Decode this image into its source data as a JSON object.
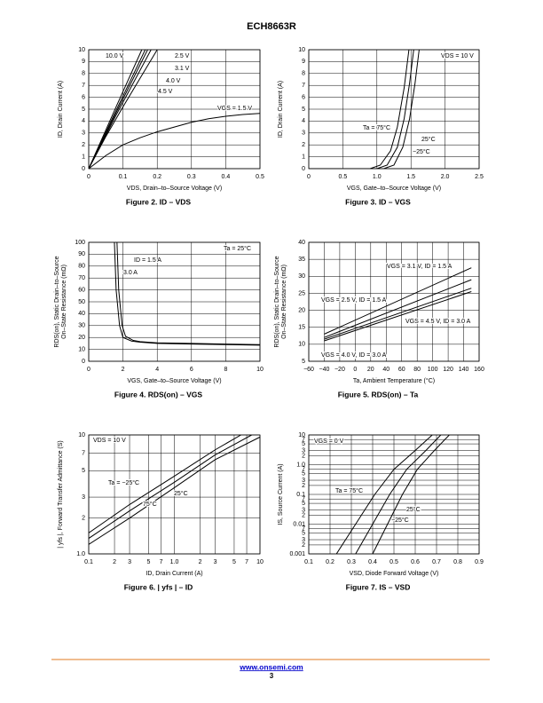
{
  "header": {
    "title": "ECH8663R"
  },
  "footer": {
    "link": "www.onsemi.com",
    "page": "3"
  },
  "chart_data": [
    {
      "type": "line",
      "title": "Figure 2. ID – VDS",
      "xlabel": "VDS, Drain–to–Source Voltage (V)",
      "ylabel": [
        "ID, Drain Current (A)"
      ],
      "xlim": [
        0,
        0.5
      ],
      "xticks": [
        0,
        0.1,
        0.2,
        0.3,
        0.4,
        0.5
      ],
      "ylim": [
        0,
        10
      ],
      "yticks": [
        0,
        1,
        2,
        3,
        4,
        5,
        6,
        7,
        8,
        9,
        10
      ],
      "grid": true,
      "color": "#000000",
      "annotations": [],
      "series": [
        {
          "name": "10.0 V",
          "x": [
            0,
            0.08,
            0.155
          ],
          "values": [
            0,
            5.2,
            10
          ]
        },
        {
          "name": "4.5 V",
          "x": [
            0,
            0.08,
            0.165
          ],
          "values": [
            0,
            4.9,
            10
          ]
        },
        {
          "name": "4.0 V",
          "x": [
            0,
            0.08,
            0.172
          ],
          "values": [
            0,
            4.7,
            10
          ]
        },
        {
          "name": "3.1 V",
          "x": [
            0,
            0.08,
            0.182
          ],
          "values": [
            0,
            4.5,
            10
          ]
        },
        {
          "name": "2.5 V",
          "x": [
            0,
            0.05,
            0.1,
            0.15,
            0.2
          ],
          "values": [
            0,
            2.7,
            5.2,
            7.6,
            10
          ]
        },
        {
          "name": "VGS = 1.5 V",
          "x": [
            0,
            0.05,
            0.1,
            0.15,
            0.2,
            0.25,
            0.3,
            0.35,
            0.4,
            0.45,
            0.5
          ],
          "values": [
            0,
            1.1,
            2.0,
            2.6,
            3.1,
            3.5,
            3.9,
            4.2,
            4.4,
            4.55,
            4.65
          ]
        }
      ]
    },
    {
      "type": "line",
      "title": "Figure 3. ID – VGS",
      "xlabel": "VGS, Gate–to–Source Voltage (V)",
      "ylabel": [
        "ID, Drain Current (A)"
      ],
      "xlim": [
        0,
        2.5
      ],
      "xticks": [
        0,
        0.5,
        {
          "value": 1,
          "label": "1.0"
        },
        1.5,
        {
          "value": 2,
          "label": "2.0"
        },
        2.5
      ],
      "ylim": [
        0,
        10
      ],
      "yticks": [
        0,
        1,
        2,
        3,
        4,
        5,
        6,
        7,
        8,
        9,
        10
      ],
      "grid": true,
      "color": "#000000",
      "annotations": [
        "VDS = 10 V"
      ],
      "series": [
        {
          "name": "Ta = 75°C",
          "x": [
            0,
            0.9,
            1.05,
            1.2,
            1.3,
            1.4,
            1.47
          ],
          "values": [
            0,
            0,
            0.3,
            1.5,
            3.5,
            6.8,
            10
          ]
        },
        {
          "name": "25°C",
          "x": [
            0,
            1.0,
            1.15,
            1.3,
            1.4,
            1.48,
            1.54
          ],
          "values": [
            0,
            0,
            0.3,
            1.8,
            4.2,
            7.2,
            10
          ]
        },
        {
          "name": "−25°C",
          "x": [
            0,
            1.1,
            1.25,
            1.38,
            1.48,
            1.56,
            1.62
          ],
          "values": [
            0,
            0,
            0.3,
            1.8,
            4.2,
            7.2,
            10
          ]
        }
      ]
    },
    {
      "type": "line",
      "title": "Figure 4. RDS(on) – VGS",
      "xlabel": "VGS, Gate–to–Source Voltage (V)",
      "ylabel": [
        "RDS(on), Static Drain–to–Source",
        "On–State Resistance (mΩ)"
      ],
      "xlim": [
        0,
        10
      ],
      "xticks": [
        0,
        2,
        4,
        6,
        8,
        10
      ],
      "ylim": [
        0,
        100
      ],
      "yticks": [
        0,
        10,
        20,
        30,
        40,
        50,
        60,
        70,
        80,
        90,
        100
      ],
      "grid": true,
      "color": "#000000",
      "annotations": [
        "Ta = 25°C"
      ],
      "series": [
        {
          "name": "ID = 1.5 A",
          "x": [
            1.5,
            1.6,
            1.8,
            2,
            2.5,
            3,
            4,
            6,
            8,
            10
          ],
          "values": [
            100,
            60,
            30,
            20,
            17,
            16,
            15,
            14.5,
            14,
            13.5
          ]
        },
        {
          "name": "3.0 A",
          "x": [
            1.65,
            1.75,
            1.95,
            2.15,
            2.6,
            3,
            4,
            6,
            8,
            10
          ],
          "values": [
            100,
            60,
            30,
            21,
            17.5,
            16.5,
            15.5,
            15,
            14.5,
            14
          ]
        }
      ]
    },
    {
      "type": "line",
      "title": "Figure 5. RDS(on) – Ta",
      "xlabel": "Ta, Ambient Temperature (°C)",
      "ylabel": [
        "RDS(on), Static Drain–to–Source",
        "On–State Resistance (mΩ)"
      ],
      "xlim": [
        -60,
        160
      ],
      "xticks": [
        {
          "value": -60,
          "label": "−60"
        },
        {
          "value": -40,
          "label": "−40"
        },
        {
          "value": -20,
          "label": "−20"
        },
        0,
        20,
        40,
        60,
        80,
        100,
        120,
        140,
        160
      ],
      "ylim": [
        5,
        40
      ],
      "yticks": [
        5,
        10,
        15,
        20,
        25,
        30,
        35,
        40
      ],
      "grid": true,
      "color": "#000000",
      "annotations": [],
      "series": [
        {
          "name": "VGS = 3.1 V, ID = 1.5 A",
          "x": [
            -40,
            150
          ],
          "values": [
            13,
            32.5
          ]
        },
        {
          "name": "VGS = 2.5 V, ID = 1.5 A",
          "x": [
            -40,
            150
          ],
          "values": [
            12,
            29
          ]
        },
        {
          "name": "VGS = 4.5 V, ID = 3.0 A",
          "x": [
            -40,
            150
          ],
          "values": [
            11.5,
            26.5
          ]
        },
        {
          "name": "VGS = 4.0 V, ID = 3.0 A",
          "x": [
            -40,
            150
          ],
          "values": [
            11,
            25.5
          ]
        }
      ]
    },
    {
      "type": "line",
      "title": "Figure 6. | yfs | – ID",
      "xlabel": "ID, Drain Current (A)",
      "ylabel": [
        "| yfs |, Forward Transfer Admittance (S)"
      ],
      "xscale": "log",
      "yscale": "log",
      "xlim": [
        0.1,
        10
      ],
      "xticks": [
        0.1,
        {
          "value": 0.2,
          "label": "2"
        },
        {
          "value": 0.3,
          "label": "3"
        },
        {
          "value": 0.5,
          "label": "5"
        },
        {
          "value": 0.7,
          "label": "7"
        },
        {
          "value": 1,
          "label": "1.0"
        },
        2,
        3,
        5,
        7,
        10
      ],
      "ylim": [
        1,
        10
      ],
      "yticks": [
        {
          "value": 1,
          "label": "1.0"
        },
        2,
        3,
        5,
        7,
        10
      ],
      "grid": true,
      "color": "#000000",
      "annotations": [
        "VDS = 10 V"
      ],
      "series": [
        {
          "name": "Ta = −25°C",
          "x": [
            0.1,
            0.3,
            1,
            3,
            6
          ],
          "values": [
            1.5,
            2.6,
            4.5,
            7.5,
            10
          ]
        },
        {
          "name": "25°C",
          "x": [
            0.1,
            0.3,
            1,
            3,
            8
          ],
          "values": [
            1.35,
            2.3,
            4,
            6.8,
            10
          ]
        },
        {
          "name": "75°C",
          "x": [
            0.1,
            0.3,
            1,
            3,
            10
          ],
          "values": [
            1.2,
            2.0,
            3.6,
            6.2,
            9.6
          ]
        }
      ]
    },
    {
      "type": "line",
      "title": "Figure 7. IS – VSD",
      "xlabel": "VSD, Diode Forward Voltage (V)",
      "ylabel": [
        "IS, Source Current (A)"
      ],
      "yscale": "log",
      "xlim": [
        0.1,
        0.9
      ],
      "xticks": [
        0.1,
        0.2,
        0.3,
        0.4,
        0.5,
        0.6,
        0.7,
        0.8,
        0.9
      ],
      "ylim": [
        0.001,
        10
      ],
      "yticks": [
        0.001,
        {
          "value": 0.002,
          "label": "2"
        },
        {
          "value": 0.003,
          "label": "3"
        },
        {
          "value": 0.005,
          "label": "5"
        },
        {
          "value": 0.007,
          "label": "7"
        },
        0.01,
        {
          "value": 0.02,
          "label": "2"
        },
        {
          "value": 0.03,
          "label": "3"
        },
        {
          "value": 0.05,
          "label": "5"
        },
        {
          "value": 0.07,
          "label": "7"
        },
        0.1,
        {
          "value": 0.2,
          "label": "2"
        },
        {
          "value": 0.3,
          "label": "3"
        },
        {
          "value": 0.5,
          "label": "5"
        },
        {
          "value": 0.7,
          "label": "7"
        },
        {
          "value": 1,
          "label": "1.0"
        },
        2,
        3,
        5,
        7,
        10
      ],
      "grid": true,
      "color": "#000000",
      "annotations": [
        "VGS = 0 V"
      ],
      "series": [
        {
          "name": "Ta = 75°C",
          "x": [
            0.23,
            0.32,
            0.41,
            0.5,
            0.6,
            0.68
          ],
          "values": [
            0.001,
            0.01,
            0.1,
            0.7,
            3,
            10
          ]
        },
        {
          "name": "25°C",
          "x": [
            0.32,
            0.4,
            0.48,
            0.56,
            0.65,
            0.72
          ],
          "values": [
            0.001,
            0.01,
            0.1,
            0.7,
            3,
            10
          ]
        },
        {
          "name": "−25°C",
          "x": [
            0.4,
            0.47,
            0.54,
            0.61,
            0.69,
            0.76
          ],
          "values": [
            0.001,
            0.01,
            0.1,
            0.7,
            3,
            10
          ]
        }
      ]
    }
  ]
}
